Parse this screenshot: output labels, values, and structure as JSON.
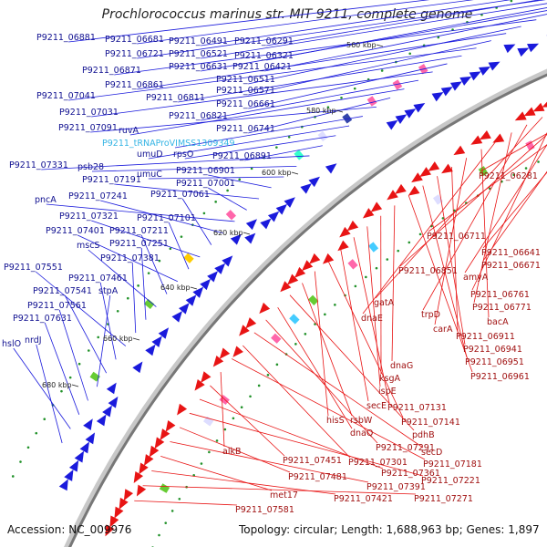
{
  "title": "Prochlorococcus marinus str. MIT 9211, complete genome",
  "footer": {
    "accession": "Accession: NC_009976",
    "summary": "Topology: circular; Length: 1,688,963 bp; Genes: 1,897"
  },
  "colors": {
    "forward_gene": "#1a1adc",
    "reverse_gene": "#e81414",
    "backbone": "#777777",
    "rna_label": "#34b4e4",
    "tick": "#22922a"
  },
  "scale_ticks": [
    "560 kbp",
    "580 kbp",
    "600 kbp",
    "620 kbp",
    "640 kbp",
    "660 kbp",
    "680 kbp"
  ],
  "forward_labels": [
    "P9211_06881",
    "P9211_06681",
    "P9211_06491",
    "P9211_06291",
    "P9211_06721",
    "P9211_06521",
    "P9211_06321",
    "P9211_06631",
    "P9211_06421",
    "P9211_06871",
    "P9211_06511",
    "P9211_06861",
    "P9211_06571",
    "P9211_07041",
    "P9211_06811",
    "P9211_06661",
    "P9211_07031",
    "P9211_06821",
    "ruvA",
    "P9211_06741",
    "P9211_07091",
    "P9211_tRNAProVIMSS1309349",
    "umuD",
    "rpsO",
    "P9211_06891",
    "P9211_07331",
    "psb28",
    "umuC",
    "P9211_06901",
    "P9211_07191",
    "P9211_07001",
    "pncA",
    "P9211_07241",
    "P9211_07061",
    "P9211_07321",
    "P9211_07101",
    "P9211_07401",
    "P9211_07211",
    "mscS",
    "P9211_07251",
    "P9211_07381",
    "P9211_07551",
    "P9211_07461",
    "P9211_07541",
    "stpA",
    "P9211_07561",
    "P9211_07631",
    "hslO",
    "nrdJ"
  ],
  "reverse_labels": [
    "P9211_06281",
    "P9211_06711",
    "P9211_06641",
    "P9211_06671",
    "P9211_06851",
    "amyA",
    "P9211_06761",
    "gatA",
    "trpD",
    "P9211_06771",
    "dnaE",
    "bacA",
    "carA",
    "P9211_06911",
    "P9211_06941",
    "P9211_06951",
    "P9211_06961",
    "dnaG",
    "ksgA",
    "ispE",
    "P9211_07131",
    "secE",
    "P9211_07141",
    "hisS",
    "rsbW",
    "pdhB",
    "dnaQ",
    "P9211_07291",
    "secD",
    "P9211_07301",
    "P9211_07181",
    "alkB",
    "P9211_07451",
    "P9211_07361",
    "P9211_07221",
    "P9211_07481",
    "P9211_07391",
    "met17",
    "P9211_07421",
    "P9211_07271",
    "P9211_07581"
  ]
}
